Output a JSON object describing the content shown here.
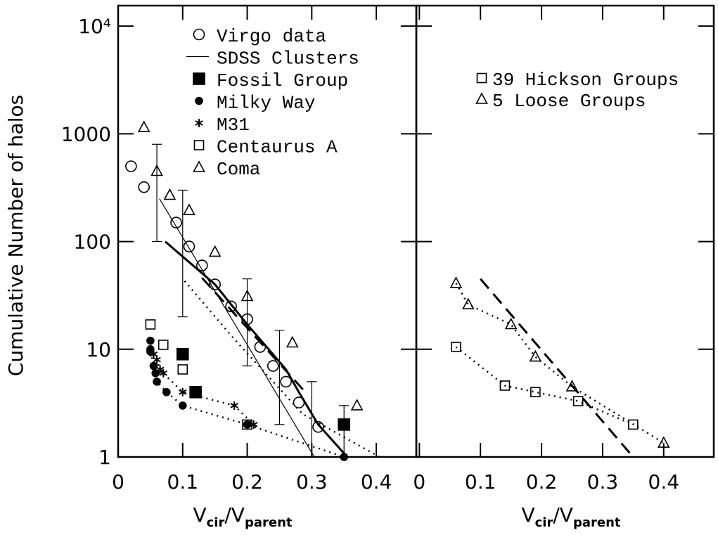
{
  "chart_data": [
    {
      "type": "scatter",
      "ylog": true,
      "color": "#000000",
      "y_label": "Cumulative Number of halos",
      "x_label_parts": [
        "V",
        "cir",
        "/V",
        "parent"
      ],
      "xlim": [
        0,
        0.462
      ],
      "ylim": [
        1,
        15500
      ],
      "xticks": [
        0,
        0.1,
        0.2,
        0.3,
        0.4
      ],
      "yticks": [
        1,
        10,
        100,
        1000,
        {
          "value": 10000,
          "label": "10⁴"
        }
      ],
      "series": [
        {
          "name": "Virgo data",
          "marker": "circle",
          "line": "none",
          "x": [
            0.02,
            0.04,
            0.09,
            0.11,
            0.13,
            0.15,
            0.175,
            0.2,
            0.22,
            0.24,
            0.26,
            0.28,
            0.31
          ],
          "values": [
            500,
            320,
            150,
            90,
            60,
            40,
            25,
            19,
            10.5,
            7,
            5,
            3.2,
            1.9
          ]
        },
        {
          "name": "SDSS Clusters",
          "marker": "none",
          "line": "thin",
          "x": [
            0.064,
            0.2,
            0.304
          ],
          "values": [
            250,
            11,
            1
          ]
        },
        {
          "name": "Fossil Group",
          "marker": "filled-square",
          "line": "none",
          "x": [
            0.1,
            0.12,
            0.35
          ],
          "values": [
            9,
            4,
            2
          ]
        },
        {
          "name": "Milky Way",
          "marker": "filled-circle",
          "line": "dotted",
          "x": [
            0.05,
            0.05,
            0.05,
            0.055,
            0.058,
            0.06,
            0.075,
            0.1,
            0.2,
            0.35
          ],
          "values": [
            12,
            10,
            9.5,
            7,
            6,
            5,
            4,
            3,
            2,
            1
          ]
        },
        {
          "name": "M31",
          "marker": "star",
          "line": "dotted",
          "x": [
            0.055,
            0.06,
            0.065,
            0.07,
            0.1,
            0.18,
            0.21
          ],
          "values": [
            9,
            8,
            6.5,
            6,
            4,
            3,
            2
          ]
        },
        {
          "name": "Centaurus A",
          "marker": "square",
          "line": "none",
          "x": [
            0.05,
            0.07,
            0.1,
            0.2
          ],
          "values": [
            17,
            11,
            6.5,
            2
          ]
        },
        {
          "name": "Coma",
          "marker": "triangle",
          "line": "none",
          "x": [
            0.04,
            0.06,
            0.08,
            0.11,
            0.15,
            0.2,
            0.27,
            0.37
          ],
          "values": [
            1150,
            450,
            270,
            195,
            80,
            31,
            11.5,
            3
          ]
        },
        {
          "marker": "none",
          "line": "thick",
          "x": [
            0.073,
            0.15,
            0.2,
            0.26,
            0.28,
            0.31,
            0.355
          ],
          "values": [
            100,
            40,
            17,
            6.5,
            4,
            2,
            1
          ]
        },
        {
          "marker": "none",
          "line": "dashed",
          "x": [
            0.13,
            0.29
          ],
          "values": [
            46,
            4
          ]
        },
        {
          "marker": "none",
          "line": "dotted",
          "x": [
            0.103,
            0.177,
            0.286,
            0.405
          ],
          "values": [
            43,
            13,
            2.5,
            1
          ]
        }
      ],
      "error_bars": {
        "x": [
          0.06,
          0.1,
          0.2,
          0.25,
          0.3,
          0.35
        ],
        "low": [
          100,
          20,
          7,
          2,
          1,
          1
        ],
        "high": [
          800,
          300,
          45,
          15,
          5,
          3
        ]
      }
    },
    {
      "type": "scatter",
      "ylog": true,
      "color": "#000000",
      "x_label_parts": [
        "V",
        "cir",
        "/V",
        "parent"
      ],
      "xlim": [
        -0.005,
        0.482
      ],
      "ylim": [
        1,
        15500
      ],
      "xticks": [
        0,
        0.1,
        0.2,
        0.3,
        0.4
      ],
      "series": [
        {
          "name": "39 Hickson Groups",
          "marker": "square",
          "line": "dotted",
          "x": [
            0.06,
            0.14,
            0.19,
            0.26,
            0.35
          ],
          "values": [
            10.5,
            4.6,
            4,
            3.3,
            2
          ]
        },
        {
          "name": "5 Loose Groups",
          "marker": "triangle",
          "line": "dotted",
          "x": [
            0.06,
            0.08,
            0.15,
            0.19,
            0.25,
            0.4
          ],
          "values": [
            41,
            26,
            17,
            8.5,
            4.5,
            1.35
          ]
        },
        {
          "marker": "none",
          "line": "dashed",
          "x": [
            0.1,
            0.35
          ],
          "values": [
            45,
            1
          ]
        }
      ]
    }
  ]
}
